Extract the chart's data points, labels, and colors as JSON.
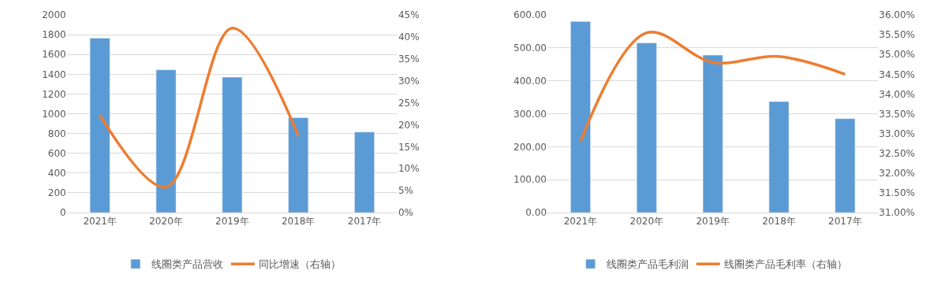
{
  "chart_data": [
    {
      "type": "bar",
      "categories": [
        "2021年",
        "2020年",
        "2019年",
        "2018年",
        "2017年"
      ],
      "series": [
        {
          "name": "线圈类产品营收",
          "color": "#5b9bd5",
          "values": [
            1765,
            1445,
            1370,
            960,
            815
          ]
        },
        {
          "name": "同比增速（右轴）",
          "type": "line",
          "axis": "y2",
          "color": "#ed7d31",
          "values": [
            22.2,
            5.8,
            42,
            17.5,
            null
          ]
        }
      ],
      "ylim": [
        0,
        2000
      ],
      "yticks": [
        0,
        200,
        400,
        600,
        800,
        1000,
        1200,
        1400,
        1600,
        1800,
        2000
      ],
      "y2lim": [
        0,
        45
      ],
      "y2ticks": [
        {
          "value": 0,
          "label": "0%"
        },
        {
          "value": 5,
          "label": "5%"
        },
        {
          "value": 10,
          "label": "10%"
        },
        {
          "value": 15,
          "label": "15%"
        },
        {
          "value": 20,
          "label": "20%"
        },
        {
          "value": 25,
          "label": "25%"
        },
        {
          "value": 30,
          "label": "30%"
        },
        {
          "value": 35,
          "label": "35%"
        },
        {
          "value": 40,
          "label": "40%"
        },
        {
          "value": 45,
          "label": "45%"
        }
      ],
      "grid": "y",
      "legend": "bottom",
      "marker": "none",
      "line_style": "solid"
    },
    {
      "type": "bar",
      "categories": [
        "2021年",
        "2020年",
        "2019年",
        "2018年",
        "2017年"
      ],
      "series": [
        {
          "name": "线圈类产品毛利润",
          "color": "#5b9bd5",
          "values": [
            580,
            515,
            478,
            337,
            285
          ]
        },
        {
          "name": "线圈类产品毛利率（右轴）",
          "type": "line",
          "axis": "y2",
          "color": "#ed7d31",
          "values": [
            32.8,
            35.55,
            34.8,
            34.95,
            34.5
          ]
        }
      ],
      "ylim": [
        0,
        600
      ],
      "yticks": [
        {
          "value": 0,
          "label": "0.00"
        },
        {
          "value": 100,
          "label": "100.00"
        },
        {
          "value": 200,
          "label": "200.00"
        },
        {
          "value": 300,
          "label": "300.00"
        },
        {
          "value": 400,
          "label": "400.00"
        },
        {
          "value": 500,
          "label": "500.00"
        },
        {
          "value": 600,
          "label": "600.00"
        }
      ],
      "y2lim": [
        31,
        36
      ],
      "y2ticks": [
        {
          "value": 31,
          "label": "31.00%"
        },
        {
          "value": 31.5,
          "label": "31.50%"
        },
        {
          "value": 32,
          "label": "32.00%"
        },
        {
          "value": 32.5,
          "label": "32.50%"
        },
        {
          "value": 33,
          "label": "33.00%"
        },
        {
          "value": 33.5,
          "label": "33.50%"
        },
        {
          "value": 34,
          "label": "34.00%"
        },
        {
          "value": 34.5,
          "label": "34.50%"
        },
        {
          "value": 35,
          "label": "35.00%"
        },
        {
          "value": 35.5,
          "label": "35.50%"
        },
        {
          "value": 36,
          "label": "36.00%"
        }
      ],
      "grid": "y",
      "legend": "bottom",
      "marker": "none",
      "line_style": "solid"
    }
  ]
}
